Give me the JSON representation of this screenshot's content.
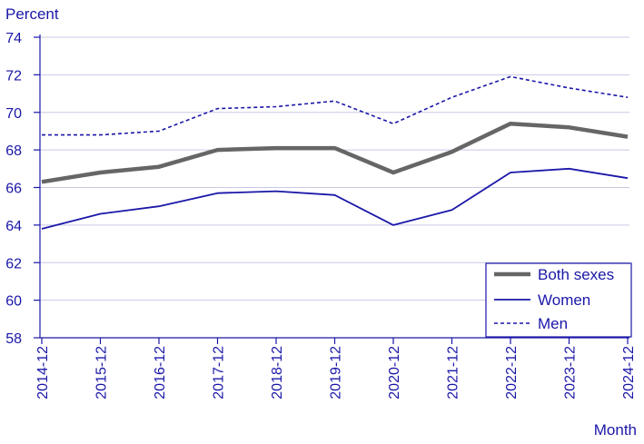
{
  "chart_data": {
    "type": "line",
    "ylabel": "Percent",
    "xlabel": "Month",
    "ylim": [
      58,
      74
    ],
    "yticks": [
      "58",
      "60",
      "62",
      "64",
      "66",
      "68",
      "70",
      "72",
      "74"
    ],
    "x": [
      "2014-12",
      "2015-12",
      "2016-12",
      "2017-12",
      "2018-12",
      "2019-12",
      "2020-12",
      "2021-12",
      "2022-12",
      "2023-12",
      "2024-12"
    ],
    "grid": true,
    "legend_position": "bottom-right",
    "series": [
      {
        "name": "Both sexes",
        "color": "#666666",
        "style": "solid-thick",
        "values": [
          66.3,
          66.8,
          67.1,
          68.0,
          68.1,
          68.1,
          66.8,
          67.9,
          69.4,
          69.2,
          68.7
        ]
      },
      {
        "name": "Women",
        "color": "#1a17a8",
        "style": "solid",
        "values": [
          63.8,
          64.6,
          65.0,
          65.7,
          65.8,
          65.6,
          64.0,
          64.8,
          66.8,
          67.0,
          66.5
        ]
      },
      {
        "name": "Men",
        "color": "#1a17a8",
        "style": "dashed",
        "values": [
          68.8,
          68.8,
          69.0,
          70.2,
          70.3,
          70.6,
          69.4,
          70.8,
          71.9,
          71.3,
          70.8
        ]
      }
    ]
  },
  "colors": {
    "axis_text": "#1a17a8",
    "grid": "#c8c8e6",
    "axis_line": "#1a17a8"
  }
}
